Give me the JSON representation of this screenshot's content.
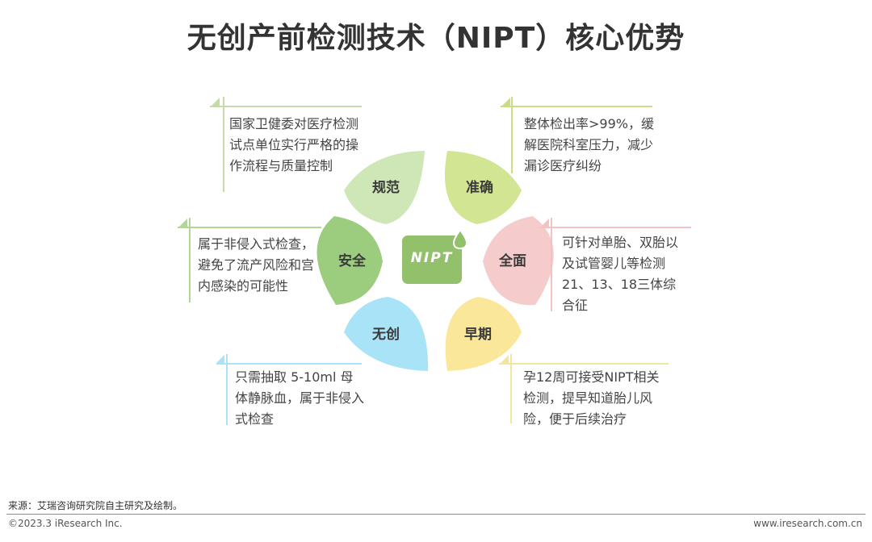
{
  "title": "无创产前检测技术（NIPT）核心优势",
  "center": {
    "label": "NIPT",
    "color": "#93c06b"
  },
  "petals": [
    {
      "label": "规范",
      "color": "#cfe7b6"
    },
    {
      "label": "准确",
      "color": "#d1e592"
    },
    {
      "label": "全面",
      "color": "#f6cbcb"
    },
    {
      "label": "早期",
      "color": "#fbe79a"
    },
    {
      "label": "无创",
      "color": "#a8e3f7"
    },
    {
      "label": "安全",
      "color": "#9ccc7e"
    }
  ],
  "callouts": [
    {
      "id": "guifan",
      "text": "国家卫健委对医疗检测试点单位实行严格的操作流程与质量控制",
      "color": "#c5dba9"
    },
    {
      "id": "zhunque",
      "text": "整体检出率>99%，缓解医院科室压力，减少漏诊医疗纠纷",
      "color": "#c9de84"
    },
    {
      "id": "quanmian",
      "text": "可针对单胎、双胎以及试管婴儿等检测21、13、18三体综合征",
      "color": "#f3c2c2"
    },
    {
      "id": "zaoqi",
      "text": "孕12周可接受NIPT相关检测，提早知道胎儿风险，便于后续治疗",
      "color": "#f4e59e"
    },
    {
      "id": "wuchuang",
      "text": "只需抽取 5-10ml 母体静脉血，属于非侵入式检查",
      "color": "#a8e3f7"
    },
    {
      "id": "anquan",
      "text": "属于非侵入式检查，避免了流产风险和宫内感染的可能性",
      "color": "#b3d696"
    }
  ],
  "footer": {
    "source": "来源：艾瑞咨询研究院自主研究及绘制。",
    "copyright": "©2023.3 iResearch Inc.",
    "website": "www.iresearch.com.cn"
  }
}
